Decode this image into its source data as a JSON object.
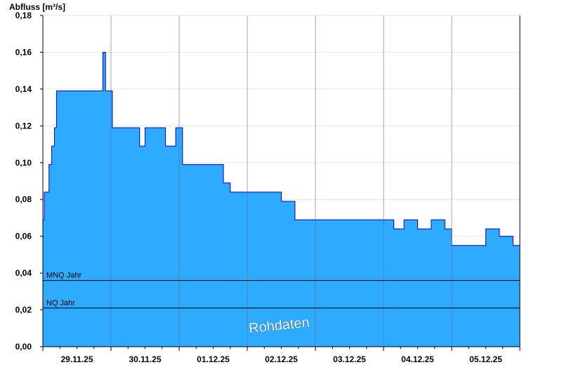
{
  "chart_data": {
    "type": "area",
    "ylabel": "Abfluss [m³/s]",
    "ylim": [
      0,
      0.18
    ],
    "yticks": [
      "0,00",
      "0,02",
      "0,04",
      "0,06",
      "0,08",
      "0,10",
      "0,12",
      "0,14",
      "0,16",
      "0,18"
    ],
    "xlim": [
      0,
      7
    ],
    "x_day_labels": [
      "29.11.25",
      "30.11.25",
      "01.12.25",
      "02.12.25",
      "03.12.25",
      "04.12.25",
      "05.12.25"
    ],
    "grid": true,
    "series": [
      {
        "x": [
          0.0,
          0.02,
          0.05,
          0.09,
          0.13,
          0.17,
          0.2,
          0.25,
          0.35,
          0.45,
          0.55,
          0.65,
          0.75,
          0.85,
          0.88,
          0.92,
          0.95,
          1.0,
          1.02,
          1.05,
          1.08,
          1.15,
          1.25,
          1.35,
          1.42,
          1.5,
          1.65,
          1.8,
          1.95,
          2.05,
          2.15,
          2.35,
          2.5,
          2.65,
          2.75,
          2.88,
          2.95,
          3.1,
          3.3,
          3.5,
          3.7,
          3.8,
          3.9,
          4.0,
          4.1,
          4.5,
          4.7,
          5.0,
          5.15,
          5.3,
          5.5,
          5.7,
          5.9,
          6.0,
          6.1,
          6.3,
          6.5,
          6.7,
          6.9,
          7.0
        ],
        "y": [
          0.069,
          0.084,
          0.084,
          0.099,
          0.109,
          0.119,
          0.139,
          0.139,
          0.139,
          0.139,
          0.139,
          0.139,
          0.139,
          0.139,
          0.16,
          0.139,
          0.139,
          0.139,
          0.119,
          0.119,
          0.119,
          0.119,
          0.119,
          0.119,
          0.109,
          0.119,
          0.119,
          0.109,
          0.119,
          0.099,
          0.099,
          0.099,
          0.099,
          0.089,
          0.084,
          0.084,
          0.084,
          0.084,
          0.084,
          0.079,
          0.069,
          0.069,
          0.069,
          0.069,
          0.069,
          0.069,
          0.069,
          0.069,
          0.064,
          0.069,
          0.064,
          0.069,
          0.064,
          0.055,
          0.055,
          0.055,
          0.064,
          0.06,
          0.055,
          0.055
        ]
      }
    ],
    "reference_lines": [
      {
        "label": "MNQ Jahr",
        "value": 0.036
      },
      {
        "label": "NQ Jahr",
        "value": 0.021
      }
    ],
    "watermark": "Rohdaten",
    "colors": {
      "fill": "#2eaaff",
      "line": "#0000cc",
      "grid": "#e6e6e6",
      "refline": "#000000"
    }
  }
}
